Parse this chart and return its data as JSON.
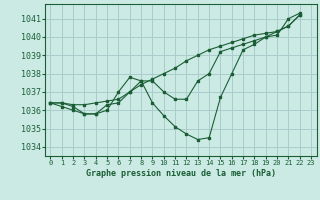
{
  "title": "Graphe pression niveau de la mer (hPa)",
  "bg_color": "#cceae4",
  "grid_color": "#aacccc",
  "line_color": "#1a5e35",
  "xlim": [
    -0.5,
    23.5
  ],
  "ylim": [
    1033.5,
    1041.8
  ],
  "yticks": [
    1034,
    1035,
    1036,
    1037,
    1038,
    1039,
    1040,
    1041
  ],
  "xticks": [
    0,
    1,
    2,
    3,
    4,
    5,
    6,
    7,
    8,
    9,
    10,
    11,
    12,
    13,
    14,
    15,
    16,
    17,
    18,
    19,
    20,
    21,
    22,
    23
  ],
  "series": [
    {
      "x": [
        0,
        1,
        2,
        3,
        4,
        5,
        6,
        7,
        8,
        9,
        10,
        11,
        12,
        13,
        14,
        15,
        16,
        17,
        18,
        19,
        20,
        21,
        22
      ],
      "y": [
        1036.4,
        1036.4,
        1036.2,
        1035.8,
        1035.8,
        1036.3,
        1036.4,
        1037.0,
        1037.6,
        1036.4,
        1035.7,
        1035.1,
        1034.7,
        1034.4,
        1034.5,
        1036.7,
        1038.0,
        1039.3,
        1039.6,
        1040.0,
        1040.1,
        1041.0,
        1041.3
      ]
    },
    {
      "x": [
        0,
        1,
        2,
        3,
        4,
        5,
        6,
        7,
        8,
        9,
        10,
        11,
        12,
        13,
        14,
        15,
        16,
        17,
        18,
        19,
        20,
        21,
        22
      ],
      "y": [
        1036.4,
        1036.4,
        1036.3,
        1036.3,
        1036.4,
        1036.5,
        1036.6,
        1037.0,
        1037.4,
        1037.7,
        1038.0,
        1038.3,
        1038.7,
        1039.0,
        1039.3,
        1039.5,
        1039.7,
        1039.9,
        1040.1,
        1040.2,
        1040.3,
        1040.6,
        1041.2
      ]
    },
    {
      "x": [
        0,
        1,
        2,
        3,
        4,
        5,
        6,
        7,
        8,
        9,
        10,
        11,
        12,
        13,
        14,
        15,
        16,
        17,
        18,
        19,
        20,
        21,
        22
      ],
      "y": [
        1036.4,
        1036.2,
        1036.0,
        1035.8,
        1035.8,
        1036.0,
        1037.0,
        1037.8,
        1037.6,
        1037.6,
        1037.0,
        1036.6,
        1036.6,
        1037.6,
        1038.0,
        1039.2,
        1039.4,
        1039.6,
        1039.8,
        1040.0,
        1040.3,
        1040.6,
        1041.2
      ]
    }
  ]
}
